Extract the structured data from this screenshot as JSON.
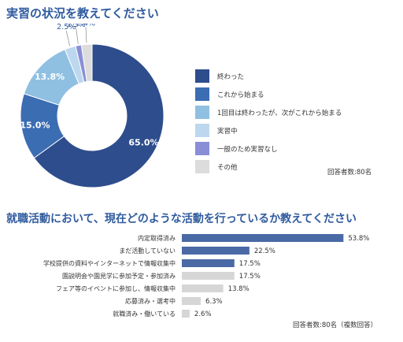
{
  "chart_data": [
    {
      "type": "pie",
      "title": "実習の状況を教えてください",
      "categories": [
        "終わった",
        "これから始まる",
        "1回目は終わったが、次がこれから始まる",
        "実習中",
        "一般のため実習なし",
        "その他"
      ],
      "values": [
        65.0,
        15.0,
        13.8,
        2.5,
        1.3,
        2.4
      ],
      "value_labels": [
        "65.0%",
        "15.0%",
        "13.8%",
        "2.5%",
        "1.3%",
        "2.4%"
      ],
      "colors": [
        "#2e4d8c",
        "#3b6db3",
        "#8fc0e2",
        "#bdd8ee",
        "#8a8ed6",
        "#dcdcdc"
      ],
      "legend": "right",
      "respondents": "回答者数:80名"
    },
    {
      "type": "bar",
      "orientation": "horizontal",
      "title": "就職活動において、現在どのような活動を行っているか教えてください",
      "categories": [
        "内定取得済み",
        "まだ活動していない",
        "学校提供の資料やインターネットで情報収集中",
        "園説明会や園見学に参加予定・参加済み",
        "フェア等のイベントに参加し、情報収集中",
        "応募済み・選考中",
        "就職済み・働いている"
      ],
      "values": [
        53.8,
        22.5,
        17.5,
        17.5,
        13.8,
        6.3,
        2.6
      ],
      "value_labels": [
        "53.8%",
        "22.5%",
        "17.5%",
        "17.5%",
        "13.8%",
        "6.3%",
        "2.6%"
      ],
      "bar_colors": [
        "#4a6aa5",
        "#4a6aa5",
        "#4a6aa5",
        "#d6d6d6",
        "#d6d6d6",
        "#d6d6d6",
        "#d6d6d6"
      ],
      "xlim": [
        0,
        60
      ],
      "respondents": "回答者数:80名（複数回答）"
    }
  ]
}
